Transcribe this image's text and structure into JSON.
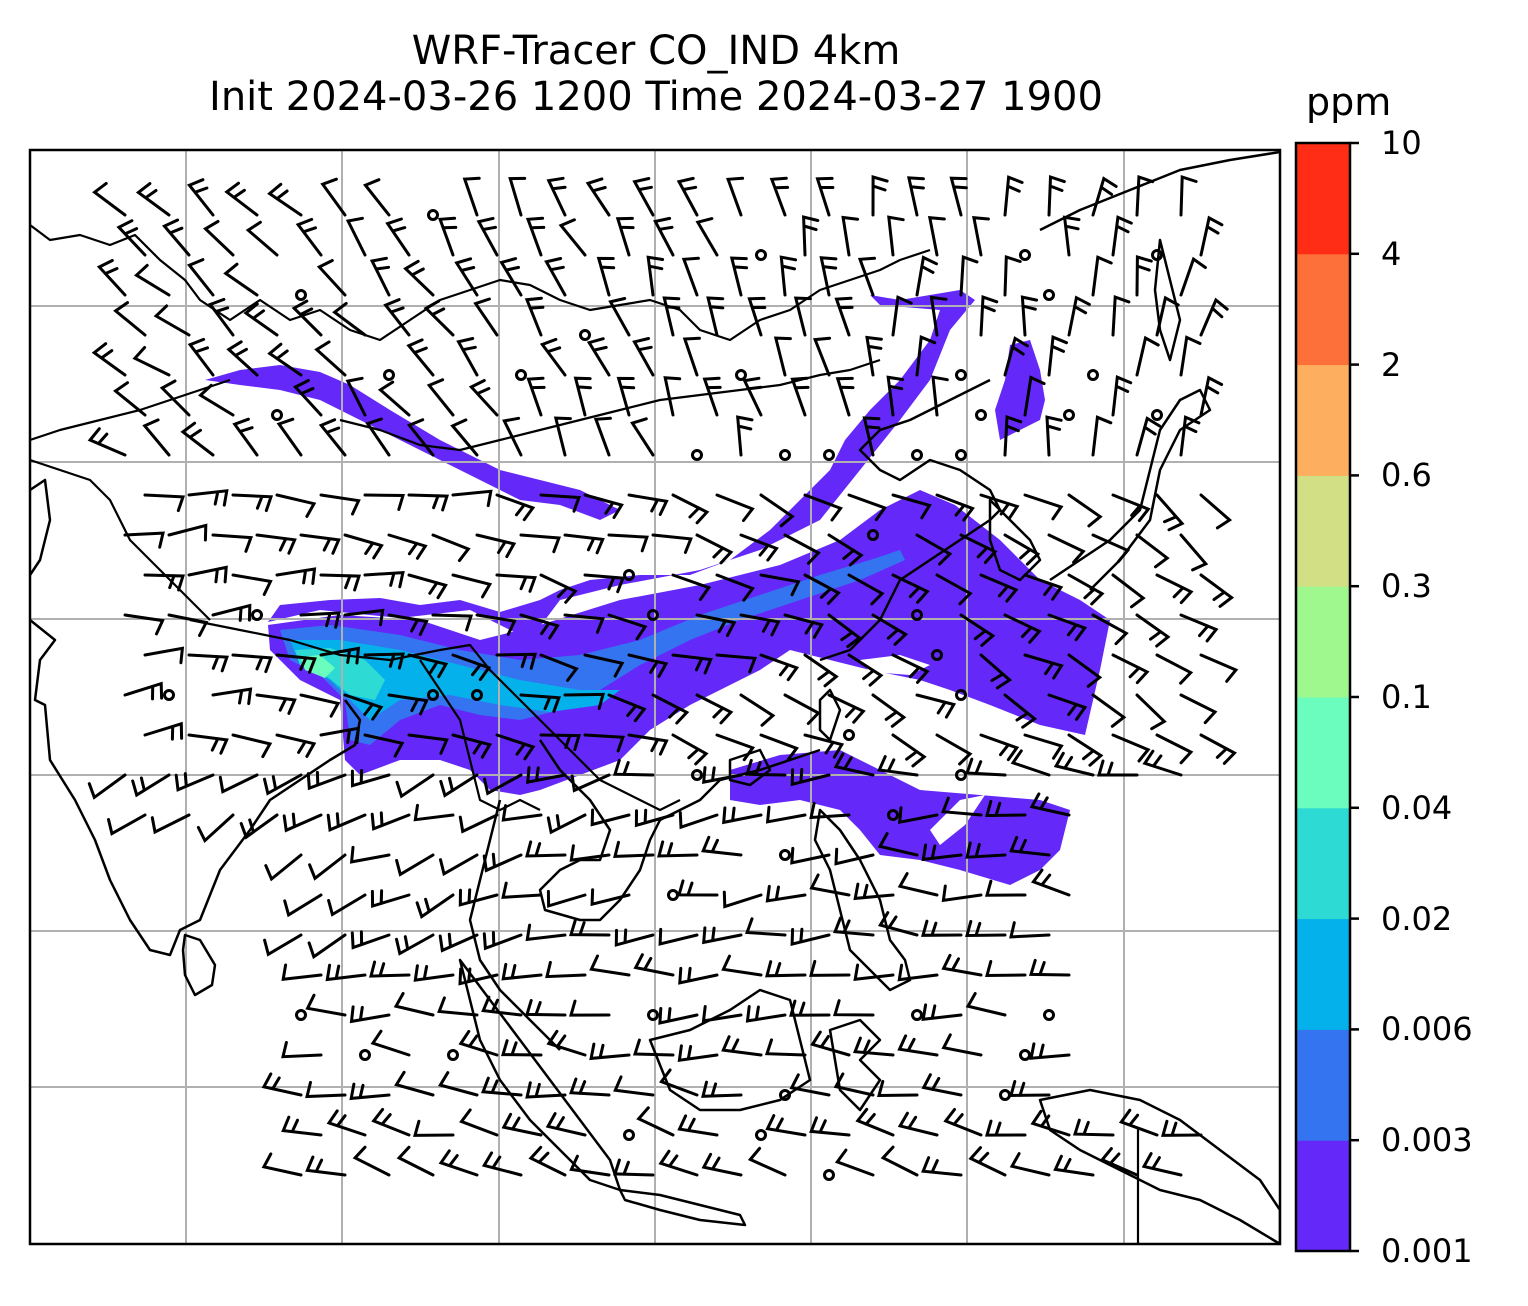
{
  "title": {
    "line1": "WRF-Tracer CO_IND 4km",
    "line2": "Init 2024-03-26 1200 Time 2024-03-27 1900"
  },
  "colorbar": {
    "unit": "ppm",
    "levels": [
      "0.001",
      "0.003",
      "0.006",
      "0.02",
      "0.04",
      "0.1",
      "0.3",
      "0.6",
      "2",
      "4",
      "10"
    ],
    "colors": [
      "#6429f8",
      "#3574f0",
      "#04b1ea",
      "#2ddbd4",
      "#6afdbd",
      "#9ff88e",
      "#d2df84",
      "#fdae5f",
      "#fe7039",
      "#ff2d16"
    ]
  },
  "map": {
    "projection": "lat-lon",
    "gridlines": "on",
    "field": "CO_IND tracer concentration",
    "overlay": "wind barbs",
    "coastlines": "on",
    "borders": "on"
  }
}
